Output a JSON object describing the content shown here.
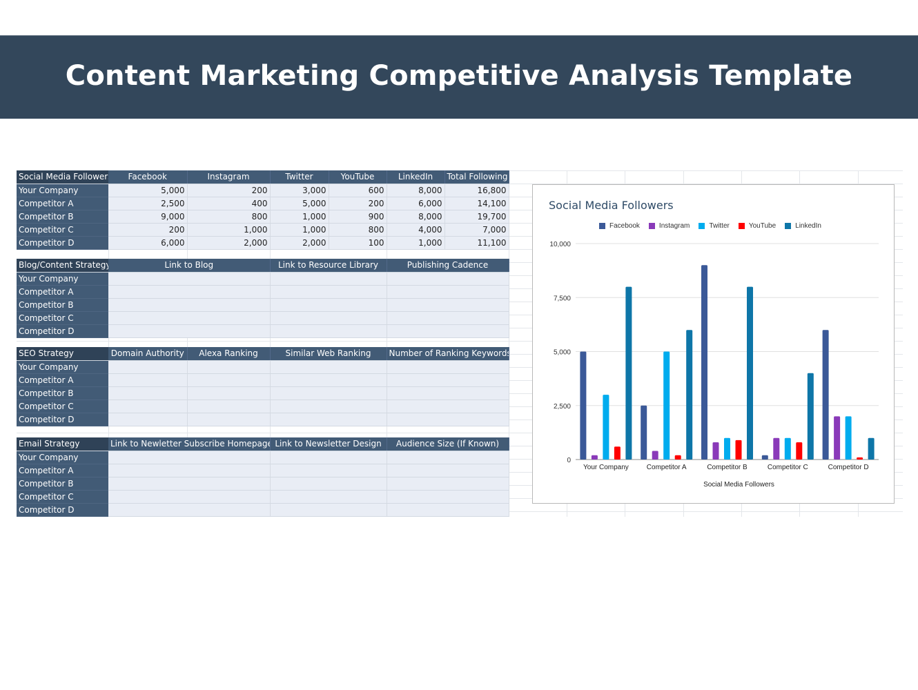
{
  "header": {
    "title": "Content Marketing Competitive Analysis Template"
  },
  "social_table": {
    "corner": "Social Media Followers",
    "columns": [
      "Facebook",
      "Instagram",
      "Twitter",
      "YouTube",
      "LinkedIn",
      "Total Following"
    ],
    "rows": [
      {
        "label": "Your Company",
        "values": [
          "5,000",
          "200",
          "3,000",
          "600",
          "8,000",
          "16,800"
        ]
      },
      {
        "label": "Competitor A",
        "values": [
          "2,500",
          "400",
          "5,000",
          "200",
          "6,000",
          "14,100"
        ]
      },
      {
        "label": "Competitor B",
        "values": [
          "9,000",
          "800",
          "1,000",
          "900",
          "8,000",
          "19,700"
        ]
      },
      {
        "label": "Competitor C",
        "values": [
          "200",
          "1,000",
          "1,000",
          "800",
          "4,000",
          "7,000"
        ]
      },
      {
        "label": "Competitor D",
        "values": [
          "6,000",
          "2,000",
          "2,000",
          "100",
          "1,000",
          "11,100"
        ]
      }
    ]
  },
  "blog_table": {
    "corner": "Blog/Content Strategy",
    "columns": [
      "Link to Blog",
      "Link to Resource Library",
      "Publishing Cadence"
    ],
    "rows": [
      {
        "label": "Your Company",
        "values": [
          "",
          "",
          ""
        ]
      },
      {
        "label": "Competitor A",
        "values": [
          "",
          "",
          ""
        ]
      },
      {
        "label": "Competitor B",
        "values": [
          "",
          "",
          ""
        ]
      },
      {
        "label": "Competitor C",
        "values": [
          "",
          "",
          ""
        ]
      },
      {
        "label": "Competitor D",
        "values": [
          "",
          "",
          ""
        ]
      }
    ]
  },
  "seo_table": {
    "corner": "SEO Strategy",
    "columns": [
      "Domain Authority",
      "Alexa Ranking",
      "Similar Web Ranking",
      "Number of Ranking Keywords"
    ],
    "rows": [
      {
        "label": "Your Company",
        "values": [
          "",
          "",
          "",
          ""
        ]
      },
      {
        "label": "Competitor A",
        "values": [
          "",
          "",
          "",
          ""
        ]
      },
      {
        "label": "Competitor B",
        "values": [
          "",
          "",
          "",
          ""
        ]
      },
      {
        "label": "Competitor C",
        "values": [
          "",
          "",
          "",
          ""
        ]
      },
      {
        "label": "Competitor D",
        "values": [
          "",
          "",
          "",
          ""
        ]
      }
    ]
  },
  "email_table": {
    "corner": "Email Strategy",
    "columns": [
      "Link to Newletter Subscribe Homepage",
      "Link to Newsletter Design",
      "Audience Size (If Known)"
    ],
    "rows": [
      {
        "label": "Your Company",
        "values": [
          "",
          "",
          ""
        ]
      },
      {
        "label": "Competitor A",
        "values": [
          "",
          "",
          ""
        ]
      },
      {
        "label": "Competitor B",
        "values": [
          "",
          "",
          ""
        ]
      },
      {
        "label": "Competitor C",
        "values": [
          "",
          "",
          ""
        ]
      },
      {
        "label": "Competitor D",
        "values": [
          "",
          "",
          ""
        ]
      }
    ]
  },
  "chart_data": {
    "type": "bar",
    "title": "Social Media Followers",
    "xlabel": "Social Media Followers",
    "ylabel": "",
    "ylim": [
      0,
      10000
    ],
    "yticks": [
      "0",
      "2,500",
      "5,000",
      "7,500",
      "10,000"
    ],
    "ytick_values": [
      0,
      2500,
      5000,
      7500,
      10000
    ],
    "grid": true,
    "legend_position": "top",
    "categories": [
      "Your Company",
      "Competitor A",
      "Competitor B",
      "Competitor C",
      "Competitor D"
    ],
    "series": [
      {
        "name": "Facebook",
        "color": "#3b5998",
        "values": [
          5000,
          2500,
          9000,
          200,
          6000
        ]
      },
      {
        "name": "Instagram",
        "color": "#8a3ab9",
        "values": [
          200,
          400,
          800,
          1000,
          2000
        ]
      },
      {
        "name": "Twitter",
        "color": "#00acee",
        "values": [
          3000,
          5000,
          1000,
          1000,
          2000
        ]
      },
      {
        "name": "YouTube",
        "color": "#ff0000",
        "values": [
          600,
          200,
          900,
          800,
          100
        ]
      },
      {
        "name": "LinkedIn",
        "color": "#0e76a8",
        "values": [
          8000,
          6000,
          8000,
          4000,
          1000
        ]
      }
    ]
  },
  "colors": {
    "banner_bg": "#33475b",
    "table_header_bg": "#425b76",
    "table_cell_bg": "#e9edf5"
  }
}
